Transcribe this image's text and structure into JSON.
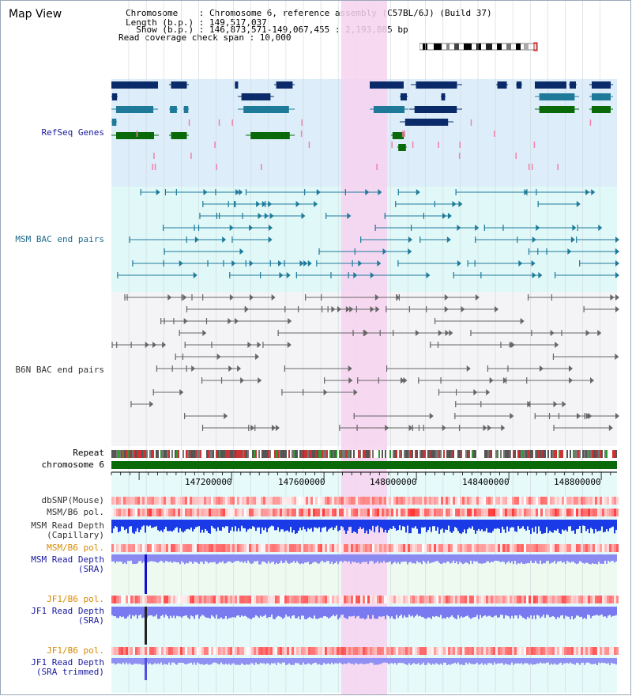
{
  "app": {
    "title": "Map View"
  },
  "info": {
    "chromosome": "Chromosome    : Chromosome 6, reference assembly (C57BL/6J) (Build 37)",
    "length": "Length (b.p.) : 149,517,037",
    "show": "  Show (b.p.) : 146,873,571-149,067,455 : 2,193,885 bp",
    "span": "Read coverage check span : 10,000"
  },
  "tracks": {
    "refseq": "RefSeq Genes",
    "msm_bac": "MSM BAC end pairs",
    "b6n_bac": "B6N BAC end pairs",
    "repeat": "Repeat",
    "chromosome": "chromosome 6",
    "dbsnp": "dbSNP(Mouse)",
    "msm_b6_pol_1": "MSM/B6 pol.",
    "msm_read_depth_cap": "MSM Read Depth",
    "capillary": "(Capillary)",
    "msm_b6_pol_2": "MSM/B6 pol.",
    "msm_read_depth_sra": "MSM Read Depth",
    "sra_1": "(SRA)",
    "jf1_b6_pol_1": "JF1/B6 pol.",
    "jf1_read_depth": "JF1 Read Depth",
    "sra_2": "(SRA)",
    "jf1_b6_pol_2": "JF1/B6 pol.",
    "jf1_read_depth_trim": "JF1 Read Depth",
    "sra_trimmed": "(SRA trimmed)"
  },
  "axis": {
    "ticks": [
      "147200000",
      "147600000",
      "148000000",
      "148400000",
      "148800000"
    ]
  },
  "colors": {
    "refseq_bg": "#ddeefa",
    "msm_bg": "#e0f8f8",
    "b6n_bg": "#f4f4f7",
    "highlight": "#f7d2f0",
    "navy": "#0a2a6a",
    "teal": "#1f7a9a",
    "green": "#0a6a0a",
    "label_blue": "#1a1aa0",
    "label_teal": "#1f6a8a",
    "label_gray": "#333333",
    "label_orange": "#d98a00"
  }
}
